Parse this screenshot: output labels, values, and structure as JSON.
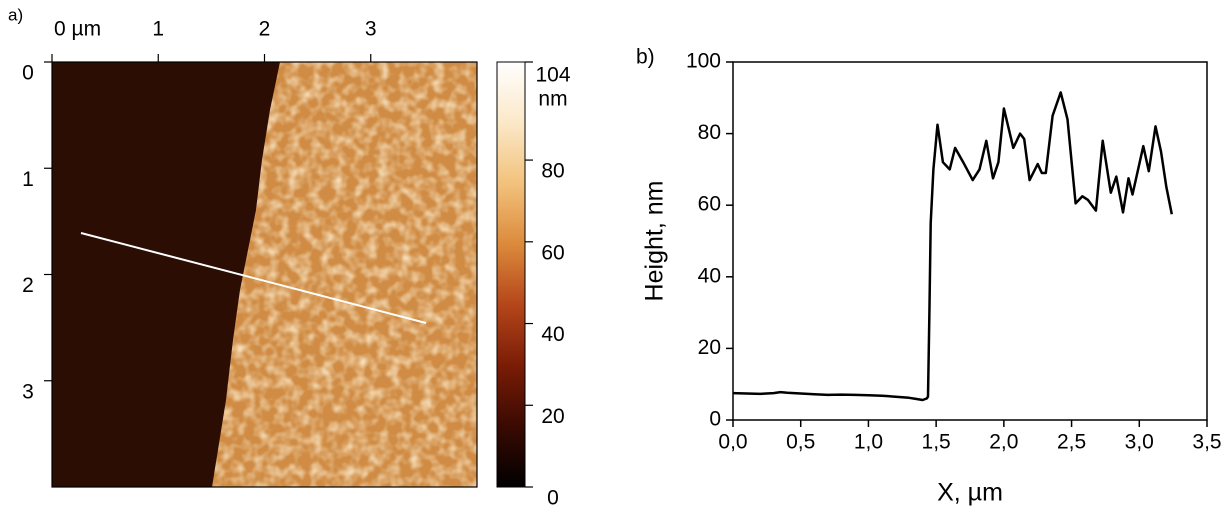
{
  "chart_data": [
    {
      "type": "image",
      "panel_label": "a)",
      "xlim": [
        0,
        4
      ],
      "xticks": [
        {
          "value": 0,
          "label": "0 µm"
        },
        1,
        2,
        3
      ],
      "ylim": [
        0,
        4
      ],
      "yticks": [
        0,
        1,
        2,
        3
      ],
      "colorbar": {
        "lim": [
          0,
          104
        ],
        "ticks": [
          104,
          80,
          60,
          40,
          20,
          0
        ],
        "unit": "nm",
        "colormap": [
          "#000000",
          "#3a0a02",
          "#7a1c06",
          "#b4461a",
          "#dc8a3c",
          "#f2c27c",
          "#fbe8c8",
          "#ffffff"
        ]
      }
    },
    {
      "type": "line",
      "panel_label": "b)",
      "xlabel": "X, µm",
      "ylabel": "Height, nm",
      "x": [
        0,
        0.1,
        0.2,
        0.3,
        0.35,
        0.4,
        0.5,
        0.6,
        0.7,
        0.8,
        0.9,
        1.0,
        1.1,
        1.2,
        1.3,
        1.35,
        1.4,
        1.43,
        1.44,
        1.45,
        1.46,
        1.48,
        1.51,
        1.55,
        1.6,
        1.64,
        1.7,
        1.77,
        1.82,
        1.87,
        1.92,
        1.96,
        2.0,
        2.07,
        2.12,
        2.15,
        2.19,
        2.25,
        2.28,
        2.31,
        2.36,
        2.42,
        2.47,
        2.53,
        2.58,
        2.62,
        2.68,
        2.73,
        2.79,
        2.83,
        2.88,
        2.92,
        2.95,
        3.03,
        3.07,
        3.12,
        3.16,
        3.2,
        3.24
      ],
      "series": [
        {
          "color": "#000000",
          "values": [
            7.5,
            7.4,
            7.3,
            7.5,
            7.8,
            7.6,
            7.4,
            7.2,
            7.0,
            7.1,
            7.0,
            6.9,
            6.8,
            6.5,
            6.2,
            5.9,
            5.6,
            6.0,
            6.5,
            30,
            55,
            70,
            82.5,
            72,
            70,
            76,
            72,
            67,
            70,
            78,
            67.5,
            72,
            87,
            76,
            80,
            78.5,
            67,
            71.5,
            69,
            69,
            85,
            91.5,
            84,
            60.5,
            62.5,
            61.5,
            58.5,
            78,
            63.5,
            68,
            58,
            67.5,
            63,
            76.5,
            69.5,
            82,
            75,
            65,
            57.5
          ]
        }
      ],
      "xlim": [
        0,
        3.5
      ],
      "xticks": [
        {
          "value": 0,
          "label": "0,0"
        },
        {
          "value": 0.5,
          "label": "0,5"
        },
        {
          "value": 1,
          "label": "1,0"
        },
        {
          "value": 1.5,
          "label": "1,5"
        },
        {
          "value": 2,
          "label": "2,0"
        },
        {
          "value": 2.5,
          "label": "2,5"
        },
        {
          "value": 3,
          "label": "3,0"
        },
        {
          "value": 3.5,
          "label": "3,5"
        }
      ],
      "ylim": [
        0,
        100
      ],
      "yticks": [
        0,
        20,
        40,
        60,
        80,
        100
      ]
    }
  ]
}
